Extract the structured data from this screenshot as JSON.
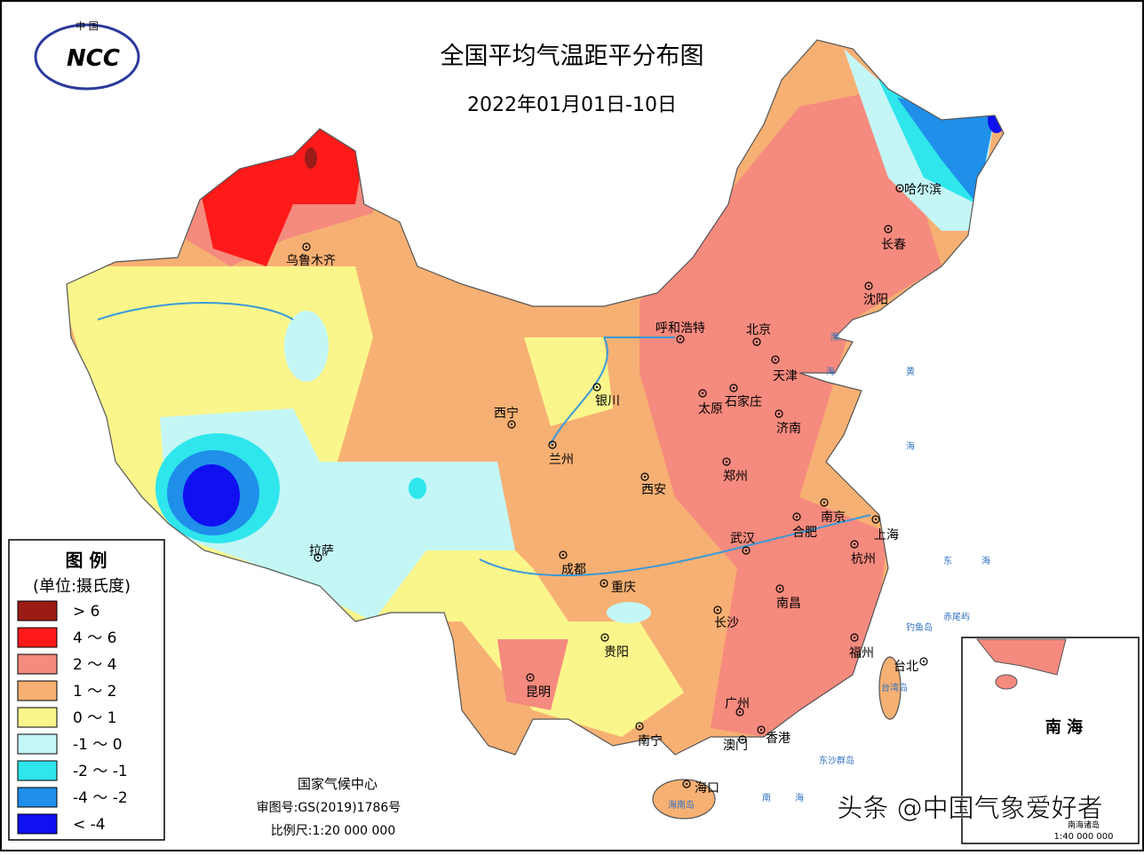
{
  "header": {
    "logo_top": "中 国",
    "logo": "NCC",
    "title": "全国平均气温距平分布图",
    "subtitle": "2022年01月01日-10日"
  },
  "legend": {
    "title": "图 例",
    "unit": "(单位:摄氏度)",
    "items": [
      {
        "label": "> 6",
        "color": "#9b1c16"
      },
      {
        "label": "4 ～ 6",
        "color": "#ff1a1a"
      },
      {
        "label": "2 ～ 4",
        "color": "#f58a7e"
      },
      {
        "label": "1 ～ 2",
        "color": "#f7b073"
      },
      {
        "label": "0 ～ 1",
        "color": "#fbf68c"
      },
      {
        "label": "-1 ～ 0",
        "color": "#c4f6f6"
      },
      {
        "label": "-2 ～ -1",
        "color": "#2ee6ec"
      },
      {
        "label": "-4 ～ -2",
        "color": "#1f8fea"
      },
      {
        "label": "< -4",
        "color": "#1010f0"
      }
    ]
  },
  "cities": [
    "乌鲁木齐",
    "呼和浩特",
    "北京",
    "天津",
    "沈阳",
    "长春",
    "哈尔滨",
    "石家庄",
    "太原",
    "济南",
    "银川",
    "西宁",
    "兰州",
    "西安",
    "郑州",
    "南京",
    "合肥",
    "上海",
    "杭州",
    "武汉",
    "拉萨",
    "成都",
    "重庆",
    "南昌",
    "长沙",
    "贵阳",
    "福州",
    "台北",
    "昆明",
    "广州",
    "南宁",
    "澳门",
    "香港",
    "海口"
  ],
  "places": [
    "钓鱼岛",
    "赤尾屿",
    "台湾岛",
    "海南岛",
    "东沙群岛",
    "东",
    "海",
    "南",
    "海",
    "黄",
    "海",
    "渤",
    "海"
  ],
  "footer": {
    "org": "国家气候中心",
    "approval": "审图号:GS(2019)1786号",
    "scale": "比例尺:1:20 000 000"
  },
  "inset": {
    "title": "南 海",
    "label": "南海诸岛",
    "scale": "1:40 000 000"
  },
  "watermark": "头条 @中国气象爱好者"
}
